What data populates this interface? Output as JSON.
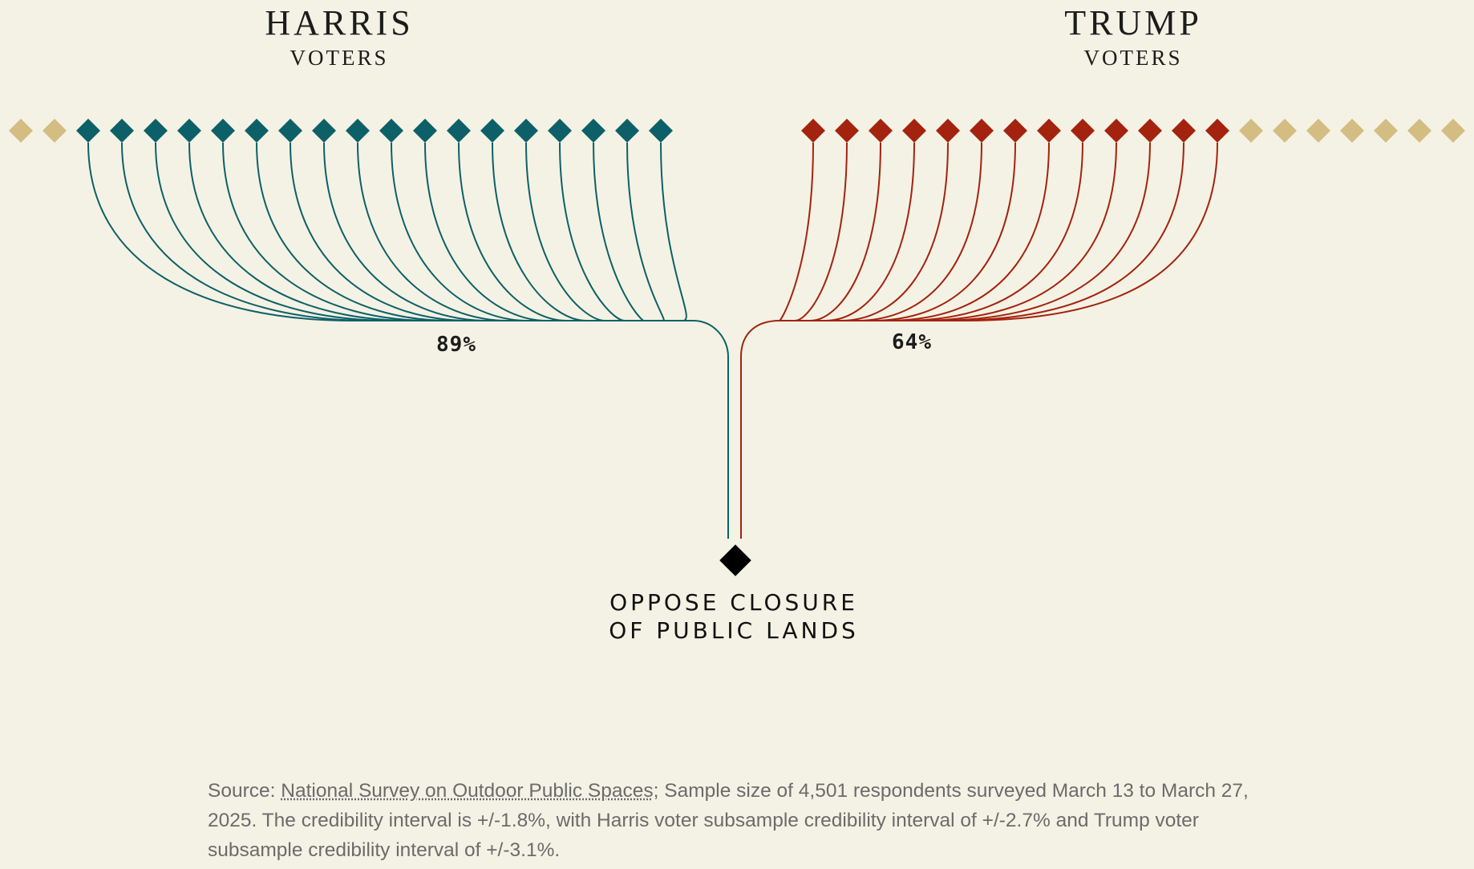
{
  "groups": {
    "harris": {
      "name": "HARRIS",
      "sub": "VOTERS",
      "percent_label": "89%",
      "filled": 18,
      "total": 20,
      "color": "#0d6068"
    },
    "trump": {
      "name": "TRUMP",
      "sub": "VOTERS",
      "percent_label": "64%",
      "filled": 13,
      "total": 20,
      "color": "#a3230f"
    }
  },
  "colors": {
    "neutral": "#d3bd83",
    "target": "#000000",
    "background": "#f4f2e4"
  },
  "target": {
    "line1": "OPPOSE CLOSURE",
    "line2": "OF PUBLIC LANDS"
  },
  "source": {
    "prefix": "Source: ",
    "link_text": "National Survey on Outdoor Public Spaces",
    "text": "; Sample size of 4,501 respondents surveyed March 13 to March 27, 2025. The credibility interval is +/-1.8%, with Harris voter subsample credibility interval of +/-2.7% and Trump voter subsample credibility interval of +/-3.1%."
  }
}
